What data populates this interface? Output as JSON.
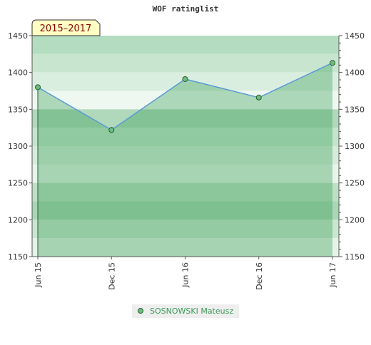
{
  "chart_data": {
    "type": "line",
    "title": "WOF ratinglist",
    "annotation": "2015–2017",
    "categories": [
      "Jun 15",
      "Dec 15",
      "Jun 16",
      "Dec 16",
      "Jun 17"
    ],
    "series": [
      {
        "name": "SOSNOWSKI Mateusz",
        "color": "#5b9bd5",
        "marker_color": "#6abf7b",
        "values": [
          1380,
          1322,
          1391,
          1366,
          1413
        ]
      }
    ],
    "ylim": [
      1150,
      1450
    ],
    "yticks": [
      1150,
      1200,
      1250,
      1300,
      1350,
      1400,
      1450
    ],
    "y_right_axis": true
  }
}
